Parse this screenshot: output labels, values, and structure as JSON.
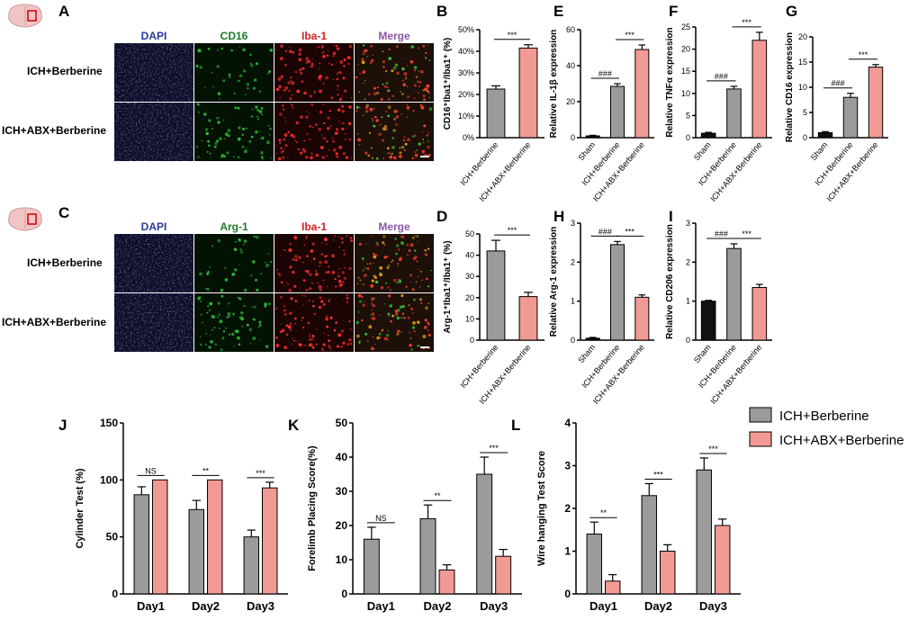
{
  "colors": {
    "gray": "#9b9b9b",
    "pink": "#f09a93",
    "black": "#111111",
    "dapi": "#2a3a9e",
    "green": "#1a7a2a",
    "red": "#d02020",
    "merge": "#8a55a8"
  },
  "panels": {
    "A": {
      "letter": "A",
      "channels": [
        "DAPI",
        "CD16",
        "Iba-1",
        "Merge"
      ],
      "rows": [
        "ICH+Berberine",
        "ICH+ABX+Berberine"
      ],
      "marker": "green"
    },
    "C": {
      "letter": "C",
      "channels": [
        "DAPI",
        "Arg-1",
        "Iba-1",
        "Merge"
      ],
      "rows": [
        "ICH+Berberine",
        "ICH+ABX+Berberine"
      ],
      "marker": "green"
    }
  },
  "legend": {
    "items": [
      {
        "label": "ICH+Berberine",
        "color": "gray"
      },
      {
        "label": "ICH+ABX+Berberine",
        "color": "pink"
      }
    ]
  },
  "chart_data": [
    {
      "id": "B",
      "letter": "B",
      "type": "bar",
      "categories": [
        "ICH+Berberine",
        "ICH+ABX+Berberine"
      ],
      "values": [
        22.5,
        41.5
      ],
      "errors": [
        1.5,
        1.5
      ],
      "colors": [
        "gray",
        "pink"
      ],
      "ylabel": "CD16⁺Iba1⁺/Iba1⁺ (%)",
      "ylim": [
        0,
        50
      ],
      "yticks": [
        0,
        10,
        20,
        30,
        40,
        50
      ],
      "tick_format": "pct",
      "sig": [
        {
          "a": 0,
          "b": 1,
          "text": "***"
        }
      ]
    },
    {
      "id": "D",
      "letter": "D",
      "type": "bar",
      "categories": [
        "ICH+Berberine",
        "ICH+ABX+Berberine"
      ],
      "values": [
        42,
        20.5
      ],
      "errors": [
        5,
        2
      ],
      "colors": [
        "gray",
        "pink"
      ],
      "ylabel": "Arg-1⁺Iba1⁺/Iba1⁺ (%)",
      "ylim": [
        0,
        50
      ],
      "yticks": [
        0,
        10,
        20,
        30,
        40,
        50
      ],
      "tick_format": "plain",
      "sig": [
        {
          "a": 0,
          "b": 1,
          "text": "***"
        }
      ]
    },
    {
      "id": "E",
      "letter": "E",
      "type": "bar",
      "categories": [
        "Sham",
        "ICH+Berberine",
        "ICH+ABX+Berberine"
      ],
      "values": [
        1,
        28.5,
        49
      ],
      "errors": [
        0.3,
        1.5,
        2.5
      ],
      "colors": [
        "black",
        "gray",
        "pink"
      ],
      "ylabel": "Relative IL-1β expression",
      "ylim": [
        0,
        60
      ],
      "yticks": [
        0,
        20,
        40,
        60
      ],
      "tick_format": "plain",
      "sig": [
        {
          "a": 0,
          "b": 1,
          "text": "###"
        },
        {
          "a": 1,
          "b": 2,
          "text": "***"
        }
      ]
    },
    {
      "id": "F",
      "letter": "F",
      "type": "bar",
      "categories": [
        "Sham",
        "ICH+Berberine",
        "ICH+ABX+Berberine"
      ],
      "values": [
        1,
        11,
        22
      ],
      "errors": [
        0.2,
        0.6,
        1.8
      ],
      "colors": [
        "black",
        "gray",
        "pink"
      ],
      "ylabel": "Relative TNFα expression",
      "ylim": [
        0,
        25
      ],
      "yticks": [
        0,
        5,
        10,
        15,
        20,
        25
      ],
      "tick_format": "plain",
      "sig": [
        {
          "a": 0,
          "b": 1,
          "text": "###"
        },
        {
          "a": 1,
          "b": 2,
          "text": "***"
        }
      ]
    },
    {
      "id": "G",
      "letter": "G",
      "type": "bar",
      "categories": [
        "Sham",
        "ICH+Berberine",
        "ICH+ABX+Berberine"
      ],
      "values": [
        1,
        8,
        14
      ],
      "errors": [
        0.2,
        0.8,
        0.5
      ],
      "colors": [
        "black",
        "gray",
        "pink"
      ],
      "ylabel": "Relative CD16 expression",
      "ylim": [
        0,
        20
      ],
      "yticks": [
        0,
        5,
        10,
        15,
        20
      ],
      "tick_format": "plain",
      "sig": [
        {
          "a": 0,
          "b": 1,
          "text": "###"
        },
        {
          "a": 1,
          "b": 2,
          "text": "***"
        }
      ]
    },
    {
      "id": "H",
      "letter": "H",
      "type": "bar",
      "categories": [
        "Sham",
        "ICH+Berberine",
        "ICH+ABX+Berberine"
      ],
      "values": [
        0.05,
        2.45,
        1.1
      ],
      "errors": [
        0.02,
        0.08,
        0.06
      ],
      "colors": [
        "black",
        "gray",
        "pink"
      ],
      "ylabel": "Relative Arg-1 expression",
      "ylim": [
        0,
        3
      ],
      "yticks": [
        0,
        1,
        2,
        3
      ],
      "tick_format": "plain",
      "sig": [
        {
          "a": 0,
          "b": 1,
          "text": "###"
        },
        {
          "a": 1,
          "b": 2,
          "text": "***"
        }
      ]
    },
    {
      "id": "I",
      "letter": "I",
      "type": "bar",
      "categories": [
        "Sham",
        "ICH+Berberine",
        "ICH+ABX+Berberine"
      ],
      "values": [
        1,
        2.35,
        1.35
      ],
      "errors": [
        0.02,
        0.12,
        0.08
      ],
      "colors": [
        "black",
        "gray",
        "pink"
      ],
      "ylabel": "Relative CD206 expression",
      "ylim": [
        0,
        3
      ],
      "yticks": [
        0,
        1,
        2,
        3
      ],
      "tick_format": "plain",
      "sig": [
        {
          "a": 0,
          "b": 1,
          "text": "###"
        },
        {
          "a": 1,
          "b": 2,
          "text": "***"
        }
      ]
    },
    {
      "id": "J",
      "letter": "J",
      "type": "bar",
      "categories": [
        "Day1",
        "Day2",
        "Day3"
      ],
      "series": [
        {
          "name": "ICH+Berberine",
          "values": [
            87,
            74,
            50
          ],
          "errors": [
            7,
            8,
            6
          ]
        },
        {
          "name": "ICH+ABX+Berberine",
          "values": [
            100,
            100,
            93
          ],
          "errors": [
            0,
            0,
            5
          ]
        }
      ],
      "ylabel": "Cylinder Test (%)",
      "ylim": [
        0,
        150
      ],
      "yticks": [
        0,
        50,
        100,
        150
      ],
      "sig": [
        "NS",
        "**",
        "***"
      ]
    },
    {
      "id": "K",
      "letter": "K",
      "type": "bar",
      "categories": [
        "Day1",
        "Day2",
        "Day3"
      ],
      "series": [
        {
          "name": "ICH+Berberine",
          "values": [
            16,
            22,
            35
          ],
          "errors": [
            3.5,
            4,
            5
          ]
        },
        {
          "name": "ICH+ABX+Berberine",
          "values": [
            0,
            7,
            11
          ],
          "errors": [
            0,
            1.5,
            2
          ]
        }
      ],
      "ylabel": "Forelimb Placing Score(%)",
      "ylim": [
        0,
        50
      ],
      "yticks": [
        0,
        10,
        20,
        30,
        40,
        50
      ],
      "sig": [
        "NS",
        "**",
        "***"
      ]
    },
    {
      "id": "L",
      "letter": "L",
      "type": "bar",
      "categories": [
        "Day1",
        "Day2",
        "Day3"
      ],
      "series": [
        {
          "name": "ICH+Berberine",
          "values": [
            1.4,
            2.3,
            2.9
          ],
          "errors": [
            0.28,
            0.28,
            0.28
          ]
        },
        {
          "name": "ICH+ABX+Berberine",
          "values": [
            0.3,
            1.0,
            1.6
          ],
          "errors": [
            0.15,
            0.15,
            0.15
          ]
        }
      ],
      "ylabel": "Wire hanging Test Score",
      "ylim": [
        0,
        4
      ],
      "yticks": [
        0,
        1,
        2,
        3,
        4
      ],
      "sig": [
        "**",
        "***",
        "***"
      ]
    }
  ]
}
